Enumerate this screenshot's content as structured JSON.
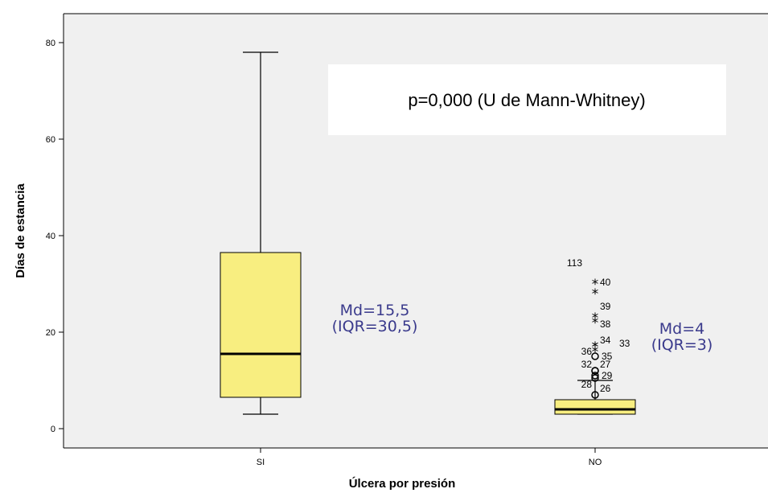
{
  "chart_data": {
    "type": "boxplot",
    "title": "",
    "xlabel": "Úlcera por presión",
    "ylabel": "Días de estancia",
    "ylim": [
      -4,
      86
    ],
    "yticks": [
      0,
      20,
      40,
      60,
      80
    ],
    "grid": false,
    "background_color": "#f0f0f0",
    "box_color": "#f8ee80",
    "annotation_color": "#3a3a8c",
    "categories": [
      "SI",
      "NO"
    ],
    "groups": [
      {
        "category": "SI",
        "min": 3,
        "q1": 6.5,
        "median": 15.5,
        "q3": 36.5,
        "max": 78,
        "outliers": [],
        "annotation": [
          "Md=15,5",
          "(IQR=30,5)"
        ]
      },
      {
        "category": "NO",
        "min": 3,
        "q1": 3,
        "median": 4,
        "q3": 6,
        "max": 10,
        "outliers": [
          {
            "id": "26",
            "value": 7,
            "marker": "circle"
          },
          {
            "id": "28",
            "value": 10.5,
            "marker": "circle"
          },
          {
            "id": "29",
            "value": 11,
            "marker": "circle"
          },
          {
            "id": "32",
            "value": 12,
            "marker": "circle"
          },
          {
            "id": "27",
            "value": 12,
            "marker": "circle"
          },
          {
            "id": "35",
            "value": 15,
            "marker": "circle"
          },
          {
            "id": "36",
            "value": 16,
            "marker": "star"
          },
          {
            "id": "33",
            "value": 17,
            "marker": "star"
          },
          {
            "id": "34",
            "value": 17,
            "marker": "star"
          },
          {
            "id": "38",
            "value": 22,
            "marker": "star"
          },
          {
            "id": "39",
            "value": 23,
            "marker": "star"
          },
          {
            "id": "40",
            "value": 28,
            "marker": "star"
          },
          {
            "id": "113",
            "value": 30,
            "marker": "star"
          }
        ],
        "annotation": [
          "Md=4",
          "(IQR=3)"
        ]
      }
    ],
    "test_annotation": "p=0,000 (U de Mann-Whitney)"
  }
}
